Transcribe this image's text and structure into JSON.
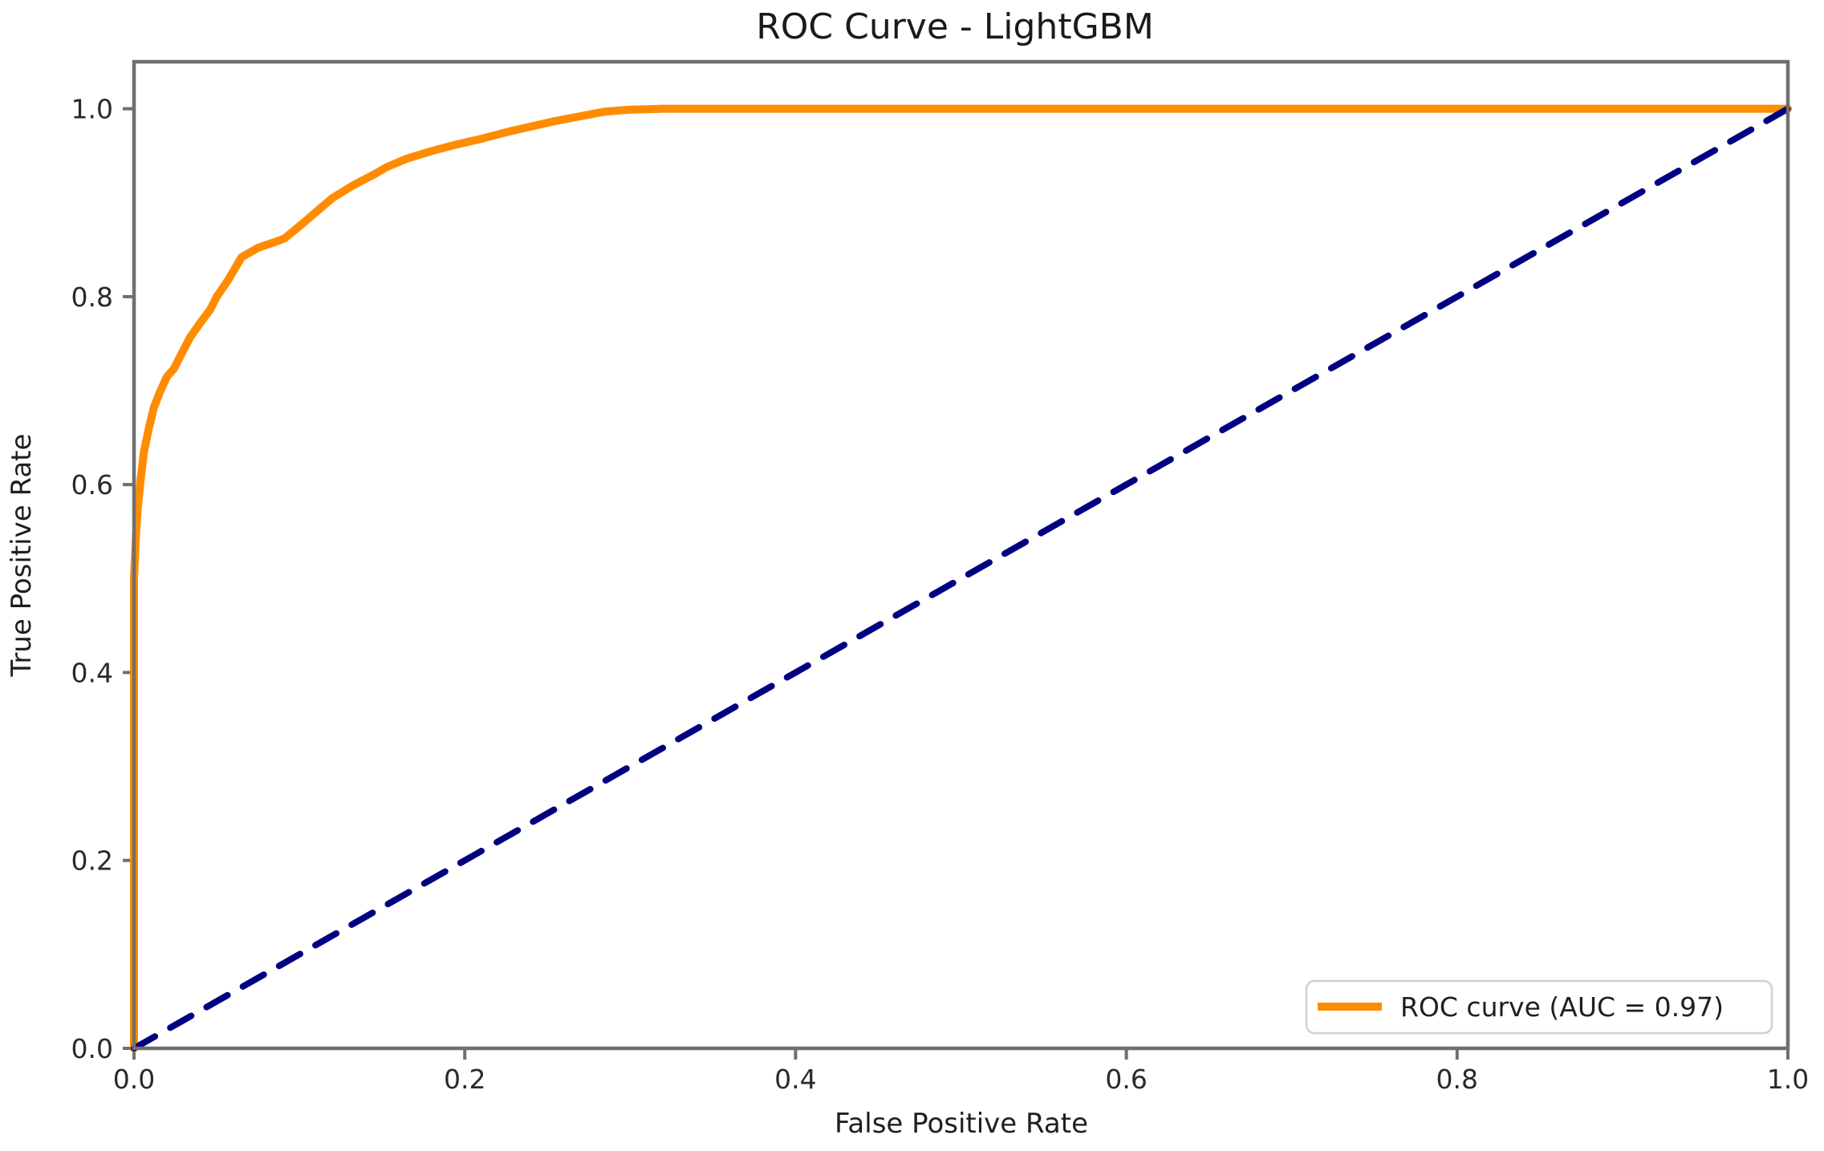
{
  "title": "ROC Curve - LightGBM",
  "axes": {
    "xlabel": "False Positive Rate",
    "ylabel": "True Positive Rate"
  },
  "legend": {
    "entries": [
      {
        "label": "ROC curve (AUC = 0.97)",
        "color": "#ff8c00"
      }
    ]
  },
  "chart_data": {
    "type": "line",
    "title": "ROC Curve - LightGBM",
    "xlabel": "False Positive Rate",
    "ylabel": "True Positive Rate",
    "xlim": [
      0.0,
      1.0
    ],
    "ylim": [
      0.0,
      1.05
    ],
    "x_ticks": [
      0.0,
      0.2,
      0.4,
      0.6,
      0.8,
      1.0
    ],
    "y_ticks": [
      0.0,
      0.2,
      0.4,
      0.6,
      0.8,
      1.0
    ],
    "grid": false,
    "legend_position": "lower right",
    "auc": 0.97,
    "series": [
      {
        "name": "ROC curve (AUC = 0.97)",
        "color": "#ff8c00",
        "style": "solid",
        "line_width": 10,
        "in_legend": true,
        "points": [
          [
            0.0,
            0.0
          ],
          [
            0.0,
            0.5
          ],
          [
            0.001,
            0.54
          ],
          [
            0.002,
            0.57
          ],
          [
            0.004,
            0.605
          ],
          [
            0.006,
            0.635
          ],
          [
            0.009,
            0.66
          ],
          [
            0.012,
            0.682
          ],
          [
            0.016,
            0.7
          ],
          [
            0.02,
            0.715
          ],
          [
            0.024,
            0.723
          ],
          [
            0.029,
            0.74
          ],
          [
            0.034,
            0.757
          ],
          [
            0.04,
            0.772
          ],
          [
            0.046,
            0.786
          ],
          [
            0.05,
            0.8
          ],
          [
            0.057,
            0.818
          ],
          [
            0.065,
            0.842
          ],
          [
            0.075,
            0.852
          ],
          [
            0.085,
            0.858
          ],
          [
            0.091,
            0.862
          ],
          [
            0.1,
            0.875
          ],
          [
            0.11,
            0.89
          ],
          [
            0.12,
            0.905
          ],
          [
            0.132,
            0.918
          ],
          [
            0.145,
            0.93
          ],
          [
            0.153,
            0.938
          ],
          [
            0.165,
            0.947
          ],
          [
            0.18,
            0.955
          ],
          [
            0.195,
            0.962
          ],
          [
            0.21,
            0.968
          ],
          [
            0.225,
            0.975
          ],
          [
            0.24,
            0.981
          ],
          [
            0.255,
            0.987
          ],
          [
            0.27,
            0.992
          ],
          [
            0.285,
            0.997
          ],
          [
            0.3,
            0.999
          ],
          [
            0.32,
            1.0
          ],
          [
            1.0,
            1.0
          ]
        ]
      },
      {
        "name": "chance-diagonal",
        "color": "#000080",
        "style": "dashed",
        "line_width": 8,
        "in_legend": false,
        "points": [
          [
            0.0,
            0.0
          ],
          [
            1.0,
            1.0
          ]
        ]
      }
    ]
  }
}
